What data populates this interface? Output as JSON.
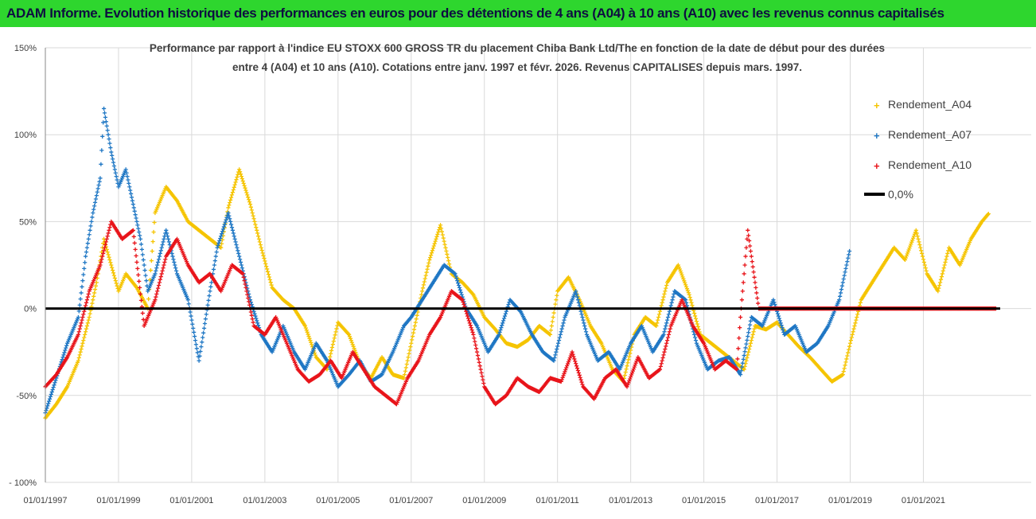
{
  "header": {
    "title": "ADAM Informe. Evolution historique des performances en euros pour des détentions de 4 ans (A04) à 10 ans (A10) avec les revenus connus capitalisés"
  },
  "colors": {
    "banner": "#2ed62e",
    "a04": "#f5c400",
    "a07": "#1f77c4",
    "a10": "#e8141a",
    "zero": "#000000",
    "grid": "#d9d9d9"
  },
  "chart_data": {
    "type": "scatter",
    "title_line1": "Performance par rapport à l'indice EU STOXX 600 GROSS TR  du placement Chiba Bank Ltd/The en fonction de la date de début pour des durées",
    "title_line2": "entre 4 (A04) et 10 ans (A10). Cotations entre janv. 1997 et févr. 2026. Revenus CAPITALISES depuis mars. 1997.",
    "ylim": [
      -100,
      150
    ],
    "xlim": [
      1997.0,
      2023.1
    ],
    "y_ticks": [
      {
        "value": 150,
        "label": "150%"
      },
      {
        "value": 100,
        "label": "100%"
      },
      {
        "value": 50,
        "label": "50%"
      },
      {
        "value": 0,
        "label": "0%"
      },
      {
        "value": -50,
        "label": "-50%"
      },
      {
        "value": -100,
        "label": "- 100%"
      }
    ],
    "x_ticks": [
      {
        "value": 1997,
        "label": "01/01/1997"
      },
      {
        "value": 1999,
        "label": "01/01/1999"
      },
      {
        "value": 2001,
        "label": "01/01/2001"
      },
      {
        "value": 2003,
        "label": "01/01/2003"
      },
      {
        "value": 2005,
        "label": "01/01/2005"
      },
      {
        "value": 2007,
        "label": "01/01/2007"
      },
      {
        "value": 2009,
        "label": "01/01/2009"
      },
      {
        "value": 2011,
        "label": "01/01/2011"
      },
      {
        "value": 2013,
        "label": "01/01/2013"
      },
      {
        "value": 2015,
        "label": "01/01/2015"
      },
      {
        "value": 2017,
        "label": "01/01/2017"
      },
      {
        "value": 2019,
        "label": "01/01/2019"
      },
      {
        "value": 2021,
        "label": "01/01/2021"
      }
    ],
    "legend": [
      {
        "name": "Rendement_A04",
        "color": "#f5c400",
        "marker": "plus"
      },
      {
        "name": "Rendement_A07",
        "color": "#1f77c4",
        "marker": "plus"
      },
      {
        "name": "Rendement_A10",
        "color": "#e8141a",
        "marker": "plus"
      },
      {
        "name": "0,0%",
        "color": "#000000",
        "marker": "line"
      }
    ],
    "series": [
      {
        "name": "Rendement_A04",
        "color": "#f5c400",
        "x": [
          1997.0,
          1997.3,
          1997.6,
          1997.9,
          1998.2,
          1998.4,
          1998.6,
          1998.8,
          1999.0,
          1999.2,
          1999.5,
          1999.8,
          2000.0,
          2000.3,
          2000.6,
          2000.9,
          2001.2,
          2001.5,
          2001.8,
          2002.0,
          2002.3,
          2002.6,
          2002.9,
          2003.2,
          2003.5,
          2003.8,
          2004.1,
          2004.4,
          2004.7,
          2005.0,
          2005.3,
          2005.6,
          2005.9,
          2006.2,
          2006.5,
          2006.8,
          2007.0,
          2007.3,
          2007.5,
          2007.8,
          2008.1,
          2008.4,
          2008.7,
          2009.0,
          2009.3,
          2009.6,
          2009.9,
          2010.2,
          2010.5,
          2010.8,
          2011.0,
          2011.3,
          2011.6,
          2011.9,
          2012.2,
          2012.5,
          2012.8,
          2013.1,
          2013.4,
          2013.7,
          2014.0,
          2014.3,
          2014.6,
          2014.9,
          2015.2,
          2015.5,
          2015.8,
          2016.1,
          2016.4,
          2016.7,
          2017.0,
          2017.3,
          2017.6,
          2017.9,
          2018.2,
          2018.5,
          2018.8,
          2019.0,
          2019.3,
          2019.6,
          2019.9,
          2020.2,
          2020.5,
          2020.8,
          2021.1,
          2021.4,
          2021.7,
          2022.0,
          2022.3,
          2022.6,
          2022.8
        ],
        "y": [
          -63,
          -55,
          -45,
          -30,
          -5,
          15,
          40,
          25,
          10,
          20,
          12,
          0,
          55,
          70,
          62,
          50,
          45,
          40,
          35,
          58,
          80,
          60,
          35,
          12,
          5,
          0,
          -10,
          -28,
          -35,
          -8,
          -15,
          -32,
          -40,
          -28,
          -38,
          -40,
          -20,
          10,
          28,
          48,
          20,
          15,
          8,
          -5,
          -12,
          -20,
          -22,
          -18,
          -10,
          -15,
          10,
          18,
          5,
          -10,
          -20,
          -35,
          -42,
          -15,
          -5,
          -10,
          15,
          25,
          8,
          -15,
          -20,
          -25,
          -30,
          -35,
          -10,
          -12,
          -8,
          -15,
          -22,
          -28,
          -35,
          -42,
          -38,
          -20,
          5,
          15,
          25,
          35,
          28,
          45,
          20,
          10,
          35,
          25,
          40,
          50,
          55
        ]
      },
      {
        "name": "Rendement_A07",
        "color": "#1f77c4",
        "x": [
          1997.0,
          1997.3,
          1997.6,
          1997.9,
          1998.1,
          1998.3,
          1998.5,
          1998.6,
          1998.8,
          1999.0,
          1999.2,
          1999.4,
          1999.6,
          1999.8,
          2000.0,
          2000.3,
          2000.6,
          2000.9,
          2001.2,
          2001.5,
          2001.7,
          2002.0,
          2002.3,
          2002.6,
          2002.9,
          2003.2,
          2003.5,
          2003.8,
          2004.1,
          2004.4,
          2004.7,
          2005.0,
          2005.3,
          2005.6,
          2005.9,
          2006.2,
          2006.5,
          2006.8,
          2007.0,
          2007.3,
          2007.6,
          2007.9,
          2008.2,
          2008.5,
          2008.8,
          2009.1,
          2009.4,
          2009.7,
          2010.0,
          2010.3,
          2010.6,
          2010.9,
          2011.2,
          2011.5,
          2011.8,
          2012.1,
          2012.4,
          2012.7,
          2013.0,
          2013.3,
          2013.6,
          2013.9,
          2014.2,
          2014.5,
          2014.8,
          2015.1,
          2015.4,
          2015.7,
          2016.0,
          2016.3,
          2016.6,
          2016.9,
          2017.2,
          2017.5,
          2017.8,
          2018.1,
          2018.4,
          2018.7,
          2019.0
        ],
        "y": [
          -60,
          -40,
          -20,
          -5,
          30,
          55,
          75,
          115,
          90,
          70,
          80,
          60,
          40,
          10,
          20,
          45,
          20,
          5,
          -30,
          10,
          35,
          55,
          30,
          5,
          -15,
          -25,
          -10,
          -25,
          -35,
          -20,
          -30,
          -45,
          -38,
          -30,
          -42,
          -38,
          -25,
          -10,
          -5,
          5,
          15,
          25,
          20,
          0,
          -10,
          -25,
          -15,
          5,
          -2,
          -15,
          -25,
          -30,
          -5,
          10,
          -15,
          -30,
          -25,
          -35,
          -20,
          -10,
          -25,
          -15,
          10,
          5,
          -20,
          -35,
          -30,
          -28,
          -38,
          -5,
          -10,
          5,
          -15,
          -10,
          -25,
          -20,
          -10,
          5,
          35
        ]
      },
      {
        "name": "Rendement_A10",
        "color": "#e8141a",
        "x": [
          1997.0,
          1997.3,
          1997.6,
          1997.9,
          1998.2,
          1998.5,
          1998.8,
          1999.1,
          1999.4,
          1999.7,
          2000.0,
          2000.3,
          2000.6,
          2000.9,
          2001.2,
          2001.5,
          2001.8,
          2002.1,
          2002.4,
          2002.7,
          2003.0,
          2003.3,
          2003.6,
          2003.9,
          2004.2,
          2004.5,
          2004.8,
          2005.1,
          2005.4,
          2005.7,
          2006.0,
          2006.3,
          2006.6,
          2006.9,
          2007.2,
          2007.5,
          2007.8,
          2008.1,
          2008.4,
          2008.7,
          2009.0,
          2009.3,
          2009.6,
          2009.9,
          2010.2,
          2010.5,
          2010.8,
          2011.1,
          2011.4,
          2011.7,
          2012.0,
          2012.3,
          2012.6,
          2012.9,
          2013.2,
          2013.5,
          2013.8,
          2014.1,
          2014.4,
          2014.7,
          2015.0,
          2015.3,
          2015.6,
          2015.9,
          2016.0,
          2016.2,
          2016.5,
          2016.8,
          2017.1,
          2017.4,
          2017.7,
          2018.0,
          2018.3,
          2018.6,
          2018.9,
          2019.2,
          2019.5,
          2019.8,
          2020.1,
          2020.4,
          2020.7,
          2021.0,
          2021.3,
          2021.6,
          2021.9,
          2022.2,
          2022.5,
          2022.8,
          2023.0
        ],
        "y": [
          -45,
          -38,
          -28,
          -15,
          10,
          25,
          50,
          40,
          45,
          -10,
          5,
          30,
          40,
          25,
          15,
          20,
          10,
          25,
          20,
          -10,
          -15,
          -5,
          -20,
          -35,
          -42,
          -38,
          -30,
          -40,
          -25,
          -35,
          -45,
          -50,
          -55,
          -40,
          -30,
          -15,
          -5,
          10,
          5,
          -15,
          -45,
          -55,
          -50,
          -40,
          -45,
          -48,
          -40,
          -42,
          -25,
          -45,
          -52,
          -40,
          -35,
          -45,
          -28,
          -40,
          -35,
          -10,
          5,
          -10,
          -20,
          -35,
          -30,
          -35,
          -5,
          45,
          0,
          0,
          0,
          0,
          0,
          0,
          0,
          0,
          0,
          0,
          0,
          0,
          0,
          0,
          0,
          0,
          0,
          0,
          0,
          0,
          0,
          0,
          0
        ]
      }
    ]
  }
}
